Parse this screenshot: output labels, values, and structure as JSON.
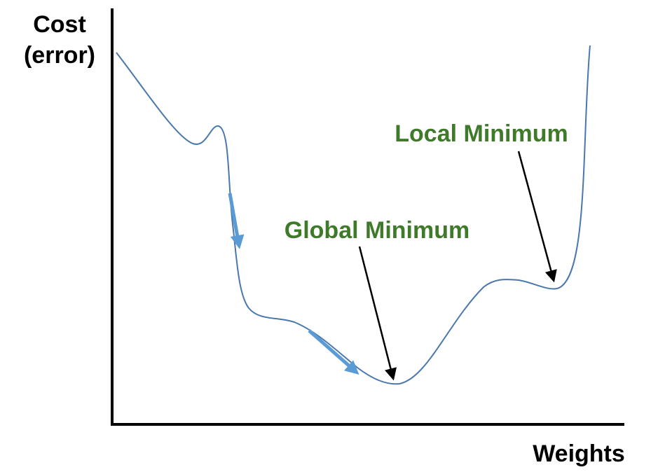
{
  "y_axis": {
    "label_line1": "Cost",
    "label_line2": "(error)"
  },
  "x_axis": {
    "label": "Weights"
  },
  "annotations": {
    "local_minimum": "Local Minimum",
    "global_minimum": "Global Minimum"
  },
  "colors": {
    "axis": "#000000",
    "curve": "#4a78ad",
    "descent_arrow": "#5b9bd5",
    "annotation_text": "#3f7a2b",
    "pointer_arrow": "#000000"
  }
}
